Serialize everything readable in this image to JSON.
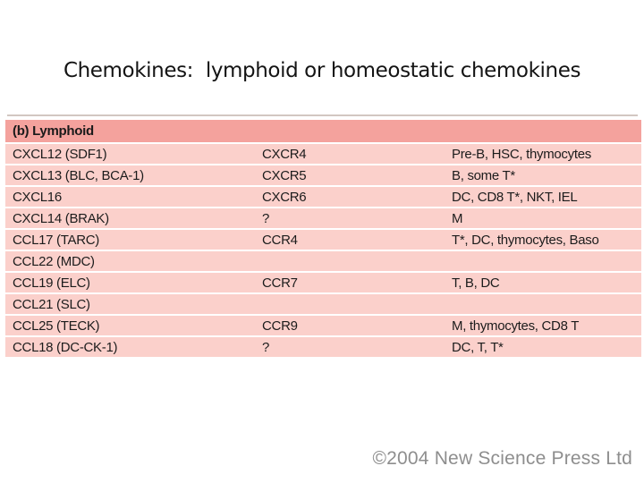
{
  "slide": {
    "title": "Chemokines:  lymphoid or homeostatic chemokines",
    "copyright": "©2004 New Science Press Ltd"
  },
  "table": {
    "section_header": "(b) Lymphoid",
    "rows": [
      {
        "chemokine": "CXCL12 (SDF1)",
        "receptor": "CXCR4",
        "cells": "Pre-B, HSC, thymocytes"
      },
      {
        "chemokine": "CXCL13 (BLC, BCA-1)",
        "receptor": "CXCR5",
        "cells": "B, some T*"
      },
      {
        "chemokine": "CXCL16",
        "receptor": "CXCR6",
        "cells": "DC, CD8 T*, NKT, IEL"
      },
      {
        "chemokine": "CXCL14 (BRAK)",
        "receptor": "?",
        "cells": "M"
      },
      {
        "chemokine": "CCL17 (TARC)",
        "receptor": "CCR4",
        "cells": "T*, DC, thymocytes, Baso"
      },
      {
        "chemokine": "CCL22 (MDC)",
        "receptor": "",
        "cells": ""
      },
      {
        "chemokine": "CCL19 (ELC)",
        "receptor": "CCR7",
        "cells": "T, B, DC"
      },
      {
        "chemokine": "CCL21 (SLC)",
        "receptor": "",
        "cells": ""
      },
      {
        "chemokine": "CCL25 (TECK)",
        "receptor": "CCR9",
        "cells": "M, thymocytes, CD8 T"
      },
      {
        "chemokine": "CCL18 (DC-CK-1)",
        "receptor": "?",
        "cells": "DC, T, T*"
      }
    ]
  },
  "colors": {
    "background": "#ffffff",
    "header_pink": "#f4a29d",
    "row_pink": "#fbd0cb",
    "top_rule": "#d2c7c1",
    "title_text": "#141414",
    "copyright_gray": "#8e8e8e"
  }
}
